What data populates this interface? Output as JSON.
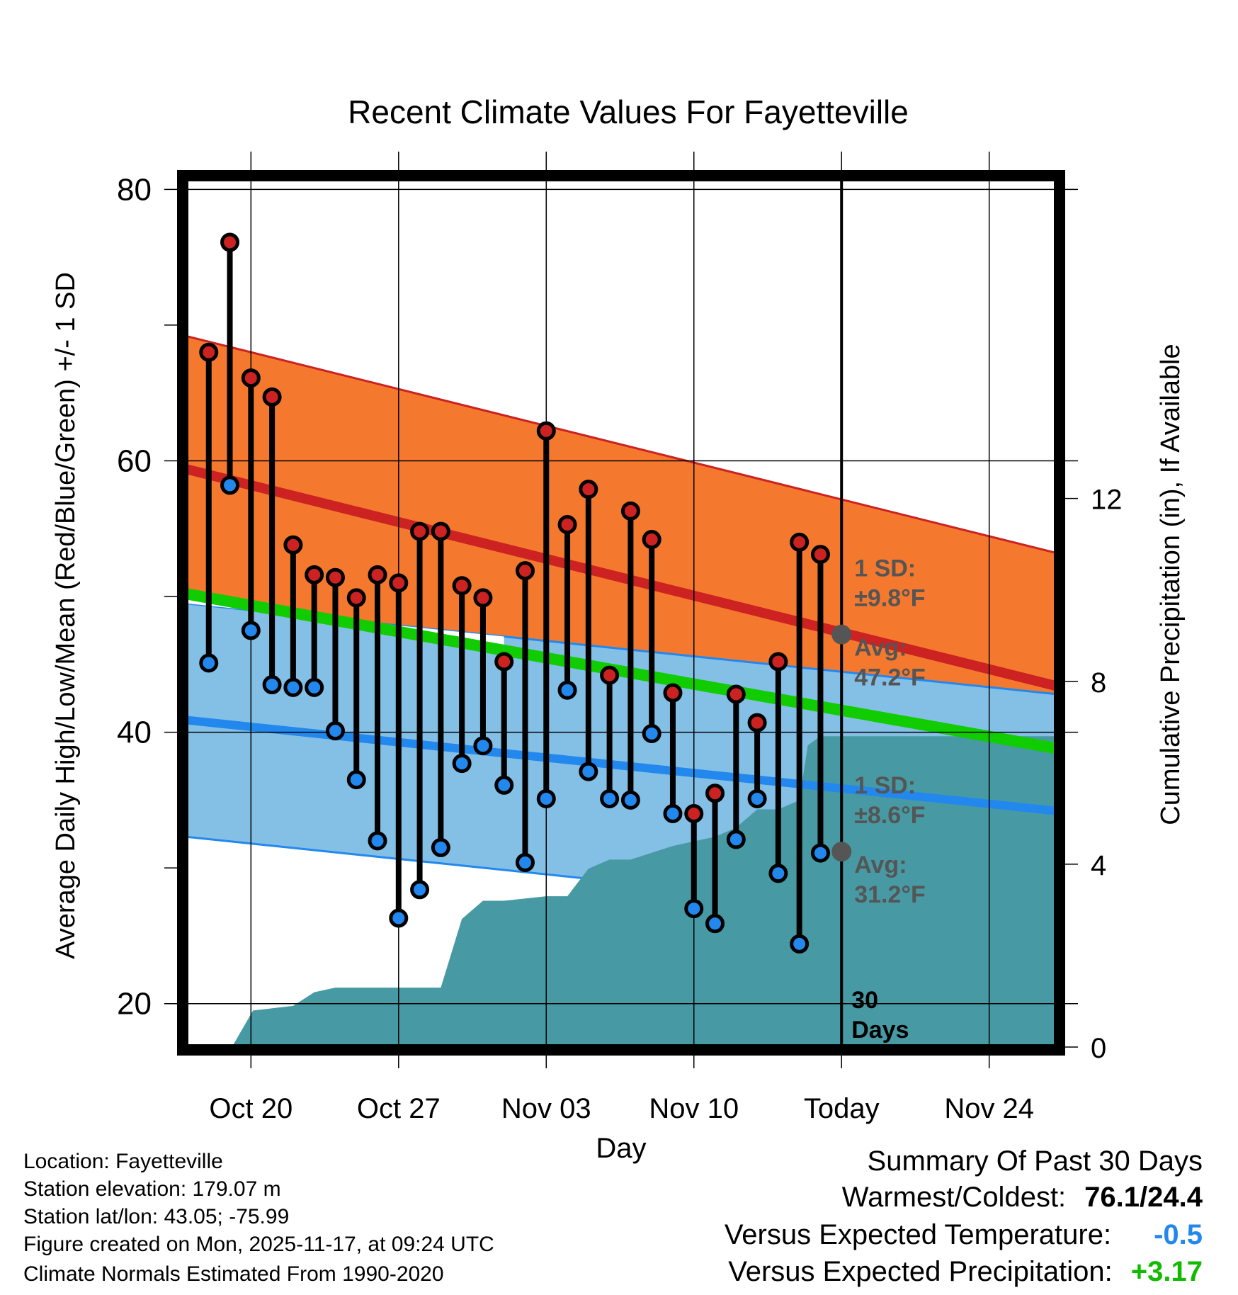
{
  "chart_data": {
    "type": "line",
    "title": "Recent Climate Values For Fayetteville",
    "xlabel": "Day",
    "ylabel": "Average Daily High/Low/Mean (Red/Blue/Green) +/- 1 SD",
    "y2label": "Cumulative Precipitation (in), If Available",
    "ylim": [
      16.8,
      80.8
    ],
    "y_ticks": [
      20,
      40,
      60,
      80
    ],
    "y2lim": [
      0,
      19
    ],
    "y2_ticks": [
      0,
      4,
      8,
      12
    ],
    "xlim": [
      -3.1,
      38.2
    ],
    "x_ticks": [
      {
        "day": 0,
        "label": "Oct 20"
      },
      {
        "day": 7,
        "label": "Oct 27"
      },
      {
        "day": 14,
        "label": "Nov 03"
      },
      {
        "day": 21,
        "label": "Nov 10"
      },
      {
        "day": 28,
        "label": "Today"
      },
      {
        "day": 35,
        "label": "Nov 24"
      }
    ],
    "days": [
      "Oct 18",
      "Oct 19",
      "Oct 20",
      "Oct 21",
      "Oct 22",
      "Oct 23",
      "Oct 24",
      "Oct 25",
      "Oct 26",
      "Oct 27",
      "Oct 28",
      "Oct 29",
      "Oct 30",
      "Oct 31",
      "Nov 01",
      "Nov 02",
      "Nov 03",
      "Nov 04",
      "Nov 05",
      "Nov 06",
      "Nov 07",
      "Nov 08",
      "Nov 09",
      "Nov 10",
      "Nov 11",
      "Nov 12",
      "Nov 13",
      "Nov 14",
      "Nov 15",
      "Nov 16"
    ],
    "series": [
      {
        "name": "Daily High",
        "color": "#cc2222",
        "values": [
          68.0,
          76.1,
          66.1,
          64.7,
          53.8,
          51.6,
          51.4,
          49.9,
          51.6,
          51.0,
          54.8,
          54.8,
          50.8,
          49.9,
          45.2,
          51.9,
          62.2,
          55.3,
          57.9,
          44.2,
          56.3,
          54.2,
          42.9,
          34.0,
          35.5,
          42.8,
          40.7,
          45.2,
          54.0,
          53.1
        ]
      },
      {
        "name": "Daily Low",
        "color": "#2288ee",
        "values": [
          45.1,
          58.2,
          47.5,
          43.5,
          43.3,
          43.3,
          40.1,
          36.5,
          32.0,
          26.3,
          28.4,
          31.5,
          37.7,
          39.0,
          36.1,
          30.4,
          35.1,
          43.1,
          37.1,
          35.1,
          35.0,
          39.9,
          34.0,
          27.0,
          25.9,
          32.1,
          35.1,
          29.6,
          24.4,
          31.1
        ]
      }
    ],
    "normals": {
      "high_mean": {
        "start": 59.4,
        "end": 43.4
      },
      "high_sd": 9.8,
      "low_mean": {
        "start": 40.9,
        "end": 34.2
      },
      "low_sd": 8.6,
      "avg_mean": {
        "start": 50.2,
        "end": 38.8
      },
      "today_high_avg": 47.2,
      "today_low_avg": 31.2
    },
    "precipitation_cumulative": {
      "day": [
        -0.9,
        0.1,
        2.0,
        3.0,
        4.0,
        5.0,
        9.0,
        10.0,
        11.0,
        12.0,
        14.0,
        15.0,
        16.0,
        17.0,
        18.0,
        20.0,
        21.0,
        22.0,
        23.0,
        24.0,
        25.0,
        26.0,
        26.4,
        27.0,
        38.2
      ],
      "inches": [
        0,
        0.8,
        0.9,
        1.2,
        1.3,
        1.3,
        1.3,
        2.8,
        3.2,
        3.2,
        3.3,
        3.3,
        3.9,
        4.1,
        4.1,
        4.4,
        4.5,
        4.6,
        4.8,
        5.2,
        5.2,
        5.4,
        6.6,
        6.8,
        6.8
      ]
    },
    "annotations": {
      "high_sd_label": [
        "1 SD:",
        "±9.8°F"
      ],
      "high_avg_label": [
        "Avg:",
        "47.2°F"
      ],
      "low_sd_label": [
        "1 SD:",
        "±8.6°F"
      ],
      "low_avg_label": [
        "Avg:",
        "31.2°F"
      ],
      "window_label": [
        "30",
        "Days"
      ]
    },
    "colors": {
      "high_band": "#f4792e",
      "high_mean": "#cc2222",
      "low_band": "#84bfe6",
      "low_mean": "#2288ee",
      "avg_mean": "#11cc00",
      "overlap": "#9a1416",
      "precip": "#479aa4",
      "marker_high": "#cc2222",
      "marker_low": "#2288ee"
    }
  },
  "footer": {
    "location": "Location: Fayetteville",
    "elevation": "Station elevation: 179.07 m",
    "latlon": "Station lat/lon: 43.05; -75.99",
    "created": "Figure created on Mon, 2025-11-17, at 09:24 UTC",
    "normals": "Climate Normals Estimated From 1990-2020"
  },
  "summary": {
    "title": "Summary Of Past 30 Days",
    "warmest_label": "Warmest/Coldest:",
    "warmest_value": "76.1/24.4",
    "temp_label": "Versus Expected Temperature:",
    "temp_value": "-0.5",
    "temp_color": "#2288ee",
    "precip_label": "Versus Expected Precipitation:",
    "precip_value": "+3.17",
    "precip_color": "#11bb00"
  }
}
